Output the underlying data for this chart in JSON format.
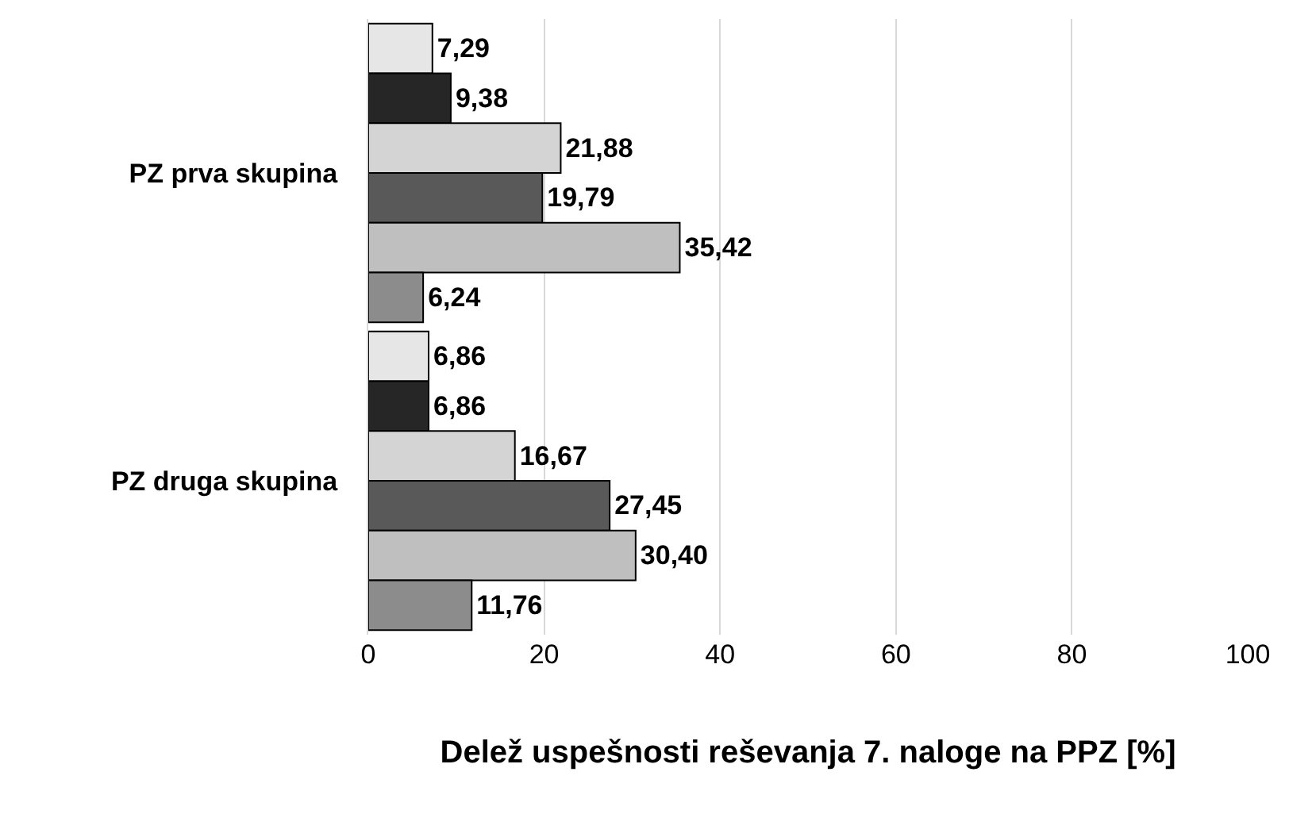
{
  "chart_data": {
    "type": "bar",
    "orientation": "horizontal",
    "xlabel": "Delež uspešnosti reševanja 7. naloge na PPZ [%]",
    "categories": [
      "PZ prva skupina",
      "PZ druga skupina"
    ],
    "series": [
      {
        "color": "#e6e6e6",
        "values": [
          7.29,
          6.86
        ],
        "value_labels": [
          "7,29",
          "6,86"
        ]
      },
      {
        "color": "#262626",
        "values": [
          9.38,
          6.86
        ],
        "value_labels": [
          "9,38",
          "6,86"
        ]
      },
      {
        "color": "#d4d4d4",
        "values": [
          21.88,
          16.67
        ],
        "value_labels": [
          "21,88",
          "16,67"
        ]
      },
      {
        "color": "#595959",
        "values": [
          19.79,
          27.45
        ],
        "value_labels": [
          "19,79",
          "27,45"
        ]
      },
      {
        "color": "#bfbfbf",
        "values": [
          35.42,
          30.4
        ],
        "value_labels": [
          "35,42",
          "30,40"
        ]
      },
      {
        "color": "#8c8c8c",
        "values": [
          6.24,
          11.76
        ],
        "value_labels": [
          "6,24",
          "11,76"
        ]
      }
    ],
    "xlim": [
      0,
      100
    ],
    "xticks": [
      0,
      20,
      40,
      60,
      80,
      100
    ],
    "grid": "x"
  }
}
